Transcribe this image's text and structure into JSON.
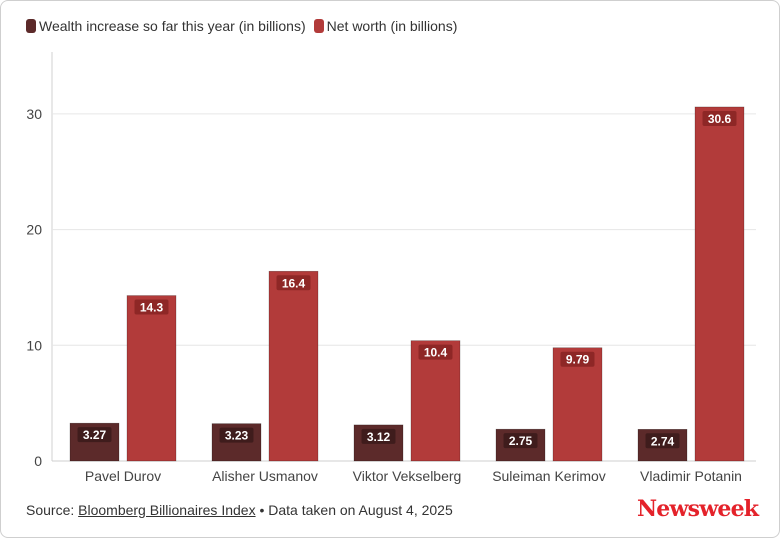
{
  "legend": [
    {
      "label": "Wealth increase so far this year (in billions)",
      "color": "#5c2a2a"
    },
    {
      "label": "Net worth (in billions)",
      "color": "#b23b3a"
    }
  ],
  "footer": {
    "source_prefix": "Source: ",
    "source_link": "Bloomberg Billionaires Index",
    "bullet": " • ",
    "note": "Data taken on August 4, 2025"
  },
  "brand": {
    "logo_text": "Newsweek",
    "color": "#e4222a"
  },
  "chart_data": {
    "type": "bar",
    "categories": [
      "Pavel Durov",
      "Alisher Usmanov",
      "Viktor Vekselberg",
      "Suleiman Kerimov",
      "Vladimir Potanin"
    ],
    "series": [
      {
        "name": "Wealth increase so far this year (in billions)",
        "values": [
          3.27,
          3.23,
          3.12,
          2.75,
          2.74
        ],
        "color": "#5c2a2a",
        "labels": [
          "3.27",
          "3.23",
          "3.12",
          "2.75",
          "2.74"
        ]
      },
      {
        "name": "Net worth (in billions)",
        "values": [
          14.3,
          16.4,
          10.4,
          9.79,
          30.6
        ],
        "color": "#b23b3a",
        "labels": [
          "14.3",
          "16.4",
          "10.4",
          "9.79",
          "30.6"
        ]
      }
    ],
    "yticks": [
      0,
      10,
      20,
      30
    ],
    "ylim": [
      0,
      30.6
    ],
    "grid": true,
    "legend_position": "top-left",
    "title": "",
    "xlabel": "",
    "ylabel": ""
  }
}
